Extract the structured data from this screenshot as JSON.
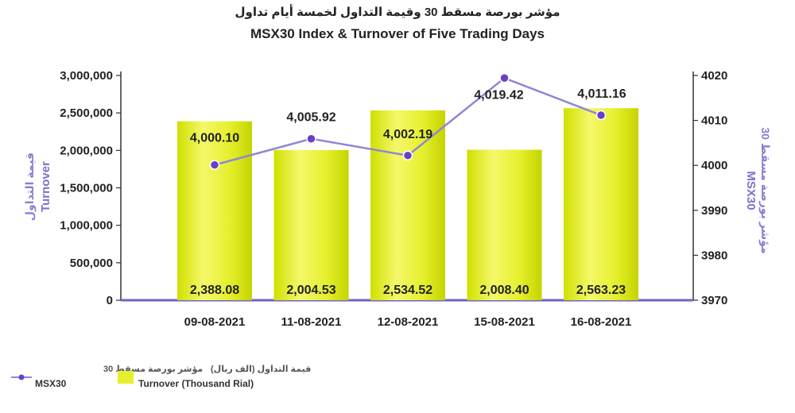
{
  "chart_data": {
    "type": "bar-line-combo",
    "title_ar": "مؤشر بورصة مسقط 30 وقيمة التداول لخمسة أيام تداول",
    "title_en": "MSX30 Index & Turnover of Five Trading Days",
    "categories": [
      "09-08-2021",
      "11-08-2021",
      "12-08-2021",
      "15-08-2021",
      "16-08-2021"
    ],
    "y_left": {
      "label_ar": "قيمة التداول",
      "label_en": "Turnover",
      "range": [
        0,
        3000000
      ],
      "ticks": [
        "0",
        "500,000",
        "1,000,000",
        "1,500,000",
        "2,000,000",
        "2,500,000",
        "3,000,000"
      ]
    },
    "y_right": {
      "label_ar": "مؤشر بورصة مسقط 30",
      "label_en": "MSX30",
      "range": [
        3970,
        4020
      ],
      "ticks": [
        "3970",
        "3980",
        "3990",
        "4000",
        "4010",
        "4020"
      ]
    },
    "series": [
      {
        "name_ar": "قيمة التداول (الف ريال)",
        "name_en": "Turnover (Thousand Rial)",
        "kind": "bar",
        "axis": "left",
        "color": "#e9f23a",
        "values": [
          2388080,
          2004530,
          2534520,
          2008400,
          2563230
        ],
        "labels": [
          "2,388.08",
          "2,004.53",
          "2,534.52",
          "2,008.40",
          "2,563.23"
        ]
      },
      {
        "name_ar": "مؤشر بورصة مسقط 30",
        "name_en": "MSX30",
        "kind": "line",
        "axis": "right",
        "color": "#8f86d8",
        "marker_color": "#6a3fc6",
        "values": [
          4000.1,
          4005.92,
          4002.19,
          4019.42,
          4011.16
        ],
        "labels": [
          "4,000.10",
          "4,005.92",
          "4,002.19",
          "4,019.42",
          "4,011.16"
        ]
      }
    ],
    "legend_position": "bottom-left",
    "grid": false
  }
}
